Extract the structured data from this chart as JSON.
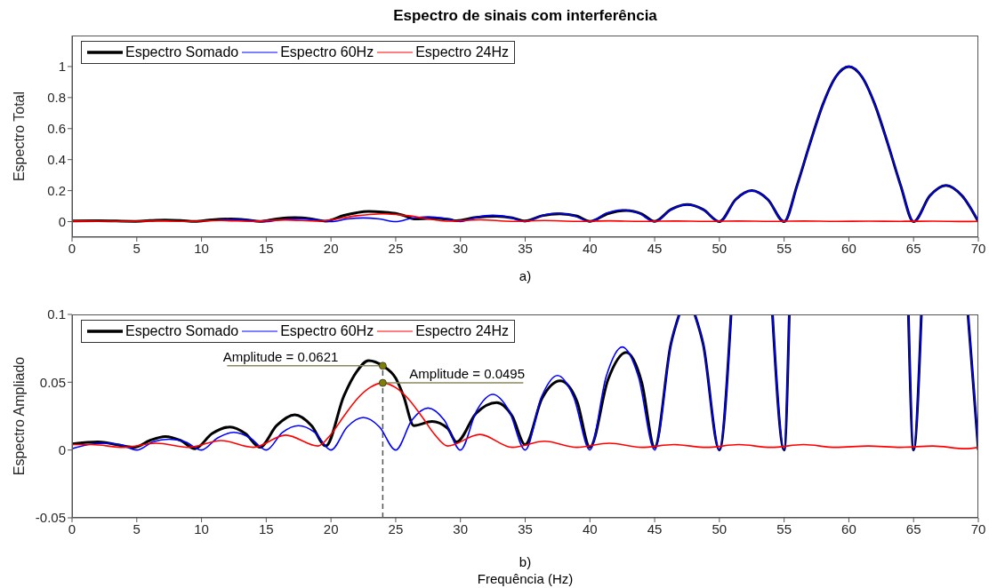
{
  "chart_data": [
    {
      "type": "line",
      "title": "Espectro de sinais com interferência",
      "ylabel": "Espectro Total",
      "xlim": [
        0,
        70
      ],
      "xticks": [
        0,
        5,
        10,
        15,
        20,
        25,
        30,
        35,
        40,
        45,
        50,
        55,
        60,
        65,
        70
      ],
      "ylim": [
        -0.1,
        1.2
      ],
      "yticks": [
        0,
        0.2,
        0.4,
        0.6,
        0.8,
        1
      ],
      "legend": "top left",
      "annotations": [
        "a)"
      ],
      "series": [
        {
          "name": "Espectro Somado",
          "color": "#000000",
          "x": [
            0,
            2,
            4.8,
            6,
            7.2,
            8.4,
            9.5,
            10.8,
            12.2,
            13.4,
            14.5,
            15.8,
            17.2,
            18.5,
            19.6,
            21,
            22,
            22.9,
            24,
            25,
            25.6,
            26.4,
            27.8,
            29,
            29.7,
            31.2,
            32.8,
            34,
            35,
            36.3,
            37.7,
            39,
            40,
            41.4,
            42.8,
            44,
            45,
            46.25,
            47.5,
            48.75,
            50,
            51.25,
            52.5,
            53.75,
            55,
            56,
            57,
            58,
            59,
            60,
            61,
            62,
            63,
            64,
            65,
            66.25,
            67.5,
            68.75,
            70
          ],
          "values": [
            0.005,
            0.006,
            0.002,
            0.007,
            0.01,
            0.007,
            0.001,
            0.012,
            0.017,
            0.012,
            0.002,
            0.018,
            0.026,
            0.018,
            0.003,
            0.04,
            0.058,
            0.066,
            0.062,
            0.053,
            0.04,
            0.018,
            0.021,
            0.016,
            0.006,
            0.027,
            0.035,
            0.025,
            0.004,
            0.038,
            0.051,
            0.036,
            0.002,
            0.052,
            0.072,
            0.05,
            0.002,
            0.078,
            0.11,
            0.078,
            0,
            0.142,
            0.2,
            0.142,
            0,
            0.234,
            0.505,
            0.757,
            0.935,
            1,
            0.935,
            0.757,
            0.505,
            0.234,
            0,
            0.166,
            0.234,
            0.166,
            0
          ]
        },
        {
          "name": "Espectro 60Hz",
          "color": "#0000ff",
          "x": [
            11.25,
            12.5,
            13.75,
            15,
            16.25,
            17.5,
            18.75,
            20,
            21.25,
            22.5,
            23.75,
            25,
            26.25,
            27.5,
            28.75,
            30,
            31.25,
            32.5,
            33.75,
            35,
            36.25,
            37.5,
            38.75,
            40,
            41.25,
            42.5,
            43.75,
            45,
            46.25,
            47.5,
            48.75,
            50,
            51.25,
            52.5,
            53.75,
            55,
            56,
            57,
            58,
            59,
            60,
            61,
            62,
            63,
            64,
            65,
            66.25,
            67.5,
            68.75,
            70
          ],
          "values": [
            0.009,
            0.013,
            0.009,
            0,
            0.013,
            0.018,
            0.013,
            0,
            0.017,
            0.024,
            0.017,
            0,
            0.022,
            0.031,
            0.022,
            0,
            0.029,
            0.041,
            0.029,
            0,
            0.039,
            0.055,
            0.039,
            0,
            0.054,
            0.076,
            0.054,
            0,
            0.078,
            0.11,
            0.078,
            0,
            0.142,
            0.2,
            0.142,
            0,
            0.234,
            0.505,
            0.757,
            0.935,
            1,
            0.935,
            0.757,
            0.505,
            0.234,
            0,
            0.166,
            0.234,
            0.166,
            0
          ]
        },
        {
          "name": "Espectro 24Hz",
          "color": "#ff0000",
          "x": [
            0,
            1.5,
            4,
            6.5,
            9,
            11.5,
            14,
            16.5,
            19,
            20,
            21,
            22,
            23,
            24,
            25,
            26,
            27,
            28,
            29,
            31.5,
            34,
            36.5,
            39,
            41.5,
            44,
            46.5,
            49,
            51.5,
            54,
            56.5,
            59,
            61.5,
            64,
            66.5,
            69,
            70
          ],
          "values": [
            0.004,
            0.004,
            0.002,
            0.005,
            0.002,
            0.007,
            0.002,
            0.011,
            0.003,
            0.012,
            0.025,
            0.038,
            0.046,
            0.05,
            0.046,
            0.038,
            0.025,
            0.012,
            0.003,
            0.012,
            0.002,
            0.007,
            0.002,
            0.005,
            0.002,
            0.004,
            0.002,
            0.004,
            0.002,
            0.004,
            0.002,
            0.003,
            0.002,
            0.003,
            0.001,
            0.002
          ]
        }
      ]
    },
    {
      "type": "line",
      "ylabel": "Espectro Ampliado",
      "xlabel": "Frequência (Hz)",
      "xlim": [
        0,
        70
      ],
      "xticks": [
        0,
        5,
        10,
        15,
        20,
        25,
        30,
        35,
        40,
        45,
        50,
        55,
        60,
        65,
        70
      ],
      "ylim": [
        -0.05,
        0.1
      ],
      "yticks": [
        -0.05,
        0,
        0.05,
        0.1
      ],
      "legend": "top left",
      "annotations": [
        {
          "text": "Amplitude = 0.0621",
          "x": 24,
          "y": 0.0621
        },
        {
          "text": "Amplitude = 0.0495",
          "x": 24,
          "y": 0.0495
        },
        "b)"
      ],
      "ref_lines": [
        {
          "axis": "x",
          "value": 24,
          "color": "#555555",
          "line_style": "dashed"
        }
      ],
      "series": [
        {
          "name": "Espectro Somado",
          "color": "#000000",
          "x": [
            0,
            2,
            4.8,
            6,
            7.2,
            8.4,
            9.5,
            10.8,
            12.2,
            13.4,
            14.5,
            15.8,
            17.2,
            18.5,
            19.6,
            21,
            22,
            22.9,
            24,
            25,
            25.6,
            26.4,
            27.8,
            29,
            29.7,
            31.2,
            32.8,
            34,
            35,
            36.3,
            37.7,
            39,
            40,
            41.4,
            42.8,
            44,
            45,
            46.25,
            46.9,
            47.5,
            48.1,
            48.75,
            50,
            50.9,
            51.25,
            52.5,
            53.75,
            54.1,
            55,
            55.4,
            56,
            57,
            58,
            59,
            60,
            61,
            62,
            63,
            64,
            64.6,
            65,
            65.6,
            66.25,
            67.5,
            68.75,
            69.2,
            70
          ],
          "values": [
            0.0045,
            0.006,
            0.002,
            0.007,
            0.01,
            0.007,
            0.001,
            0.012,
            0.017,
            0.012,
            0.002,
            0.018,
            0.026,
            0.018,
            0.003,
            0.04,
            0.058,
            0.066,
            0.0621,
            0.053,
            0.04,
            0.018,
            0.021,
            0.016,
            0.006,
            0.027,
            0.035,
            0.025,
            0.004,
            0.038,
            0.051,
            0.036,
            0.002,
            0.052,
            0.072,
            0.05,
            0.002,
            0.078,
            0.1,
            null,
            0.1,
            0.078,
            0,
            0.1,
            null,
            null,
            null,
            0.1,
            0,
            0.1,
            null,
            null,
            null,
            null,
            null,
            null,
            null,
            null,
            null,
            0.1,
            0,
            0.1,
            null,
            null,
            null,
            0.1,
            0
          ]
        },
        {
          "name": "Espectro 60Hz",
          "color": "#0000ff",
          "x": [
            0,
            1.25,
            2.5,
            3.75,
            5,
            6.25,
            7.5,
            8.75,
            10,
            11.25,
            12.5,
            13.75,
            15,
            16.25,
            17.5,
            18.75,
            20,
            21.25,
            22.5,
            23.75,
            25,
            26.25,
            27.5,
            28.75,
            30,
            31.25,
            32.5,
            33.75,
            35,
            36.25,
            37.5,
            38.75,
            40,
            41.25,
            42.5,
            43.75,
            45,
            46.25,
            46.9,
            47.5,
            48.1,
            48.75,
            50,
            50.9,
            51.25,
            52.5,
            53.75,
            54.1,
            55,
            55.4,
            56,
            57,
            58,
            59,
            60,
            61,
            62,
            63,
            64,
            64.6,
            65,
            65.6,
            66.25,
            67.5,
            68.75,
            69.2,
            70
          ],
          "values": [
            0.001,
            0.004,
            0.005,
            0.004,
            0,
            0.006,
            0.008,
            0.006,
            0,
            0.009,
            0.013,
            0.009,
            0,
            0.013,
            0.018,
            0.013,
            0,
            0.017,
            0.024,
            0.017,
            0,
            0.022,
            0.031,
            0.022,
            0,
            0.029,
            0.041,
            0.029,
            0,
            0.039,
            0.055,
            0.039,
            0,
            0.054,
            0.076,
            0.054,
            0,
            0.078,
            0.1,
            null,
            0.1,
            0.078,
            0,
            0.1,
            null,
            null,
            null,
            0.1,
            0,
            0.1,
            null,
            null,
            null,
            null,
            null,
            null,
            null,
            null,
            null,
            0.1,
            0,
            0.1,
            null,
            null,
            null,
            0.1,
            0
          ]
        },
        {
          "name": "Espectro 24Hz",
          "color": "#ff0000",
          "x": [
            0,
            1.5,
            4,
            6.5,
            9,
            11.5,
            14,
            16.5,
            19,
            20,
            21,
            22,
            23,
            24,
            25,
            26,
            27,
            28,
            29,
            31.5,
            34,
            36.5,
            39,
            41.5,
            44,
            46.5,
            49,
            51.5,
            54,
            56.5,
            59,
            61.5,
            64,
            66.5,
            69,
            70
          ],
          "values": [
            0.004,
            0.004,
            0.002,
            0.005,
            0.002,
            0.007,
            0.002,
            0.011,
            0.003,
            0.0116,
            0.025,
            0.0375,
            0.046,
            0.0495,
            0.046,
            0.0375,
            0.025,
            0.0116,
            0.003,
            0.0115,
            0.002,
            0.0065,
            0.002,
            0.005,
            0.002,
            0.004,
            0.002,
            0.004,
            0.002,
            0.004,
            0.002,
            0.003,
            0.002,
            0.003,
            0.001,
            0.002
          ]
        }
      ]
    }
  ]
}
